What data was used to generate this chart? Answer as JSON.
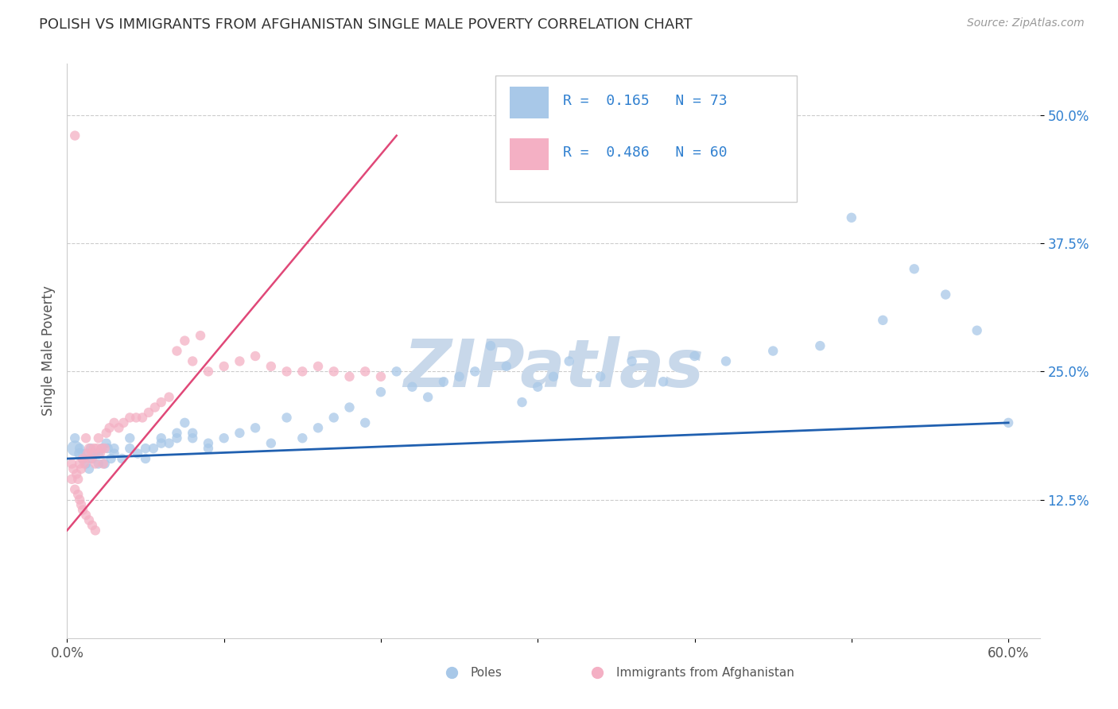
{
  "title": "POLISH VS IMMIGRANTS FROM AFGHANISTAN SINGLE MALE POVERTY CORRELATION CHART",
  "source": "Source: ZipAtlas.com",
  "ylabel": "Single Male Poverty",
  "watermark": "ZIPatlas",
  "xlim": [
    0.0,
    0.62
  ],
  "ylim": [
    -0.01,
    0.55
  ],
  "xtick_positions": [
    0.0,
    0.6
  ],
  "xticklabels": [
    "0.0%",
    "60.0%"
  ],
  "ytick_positions": [
    0.125,
    0.25,
    0.375,
    0.5
  ],
  "ytick_labels": [
    "12.5%",
    "25.0%",
    "37.5%",
    "50.0%"
  ],
  "legend_R1": "R =  0.165",
  "legend_N1": "N = 73",
  "legend_R2": "R =  0.486",
  "legend_N2": "N = 60",
  "blue_color": "#a8c8e8",
  "pink_color": "#f4b0c4",
  "blue_line_color": "#2060b0",
  "pink_line_color": "#e04878",
  "ytick_color": "#3080d0",
  "title_color": "#333333",
  "watermark_color": "#c8d8ea",
  "grid_color": "#cccccc",
  "blue_scatter_x": [
    0.005,
    0.008,
    0.01,
    0.012,
    0.014,
    0.016,
    0.018,
    0.02,
    0.022,
    0.024,
    0.026,
    0.028,
    0.03,
    0.035,
    0.04,
    0.045,
    0.05,
    0.055,
    0.06,
    0.065,
    0.07,
    0.075,
    0.08,
    0.09,
    0.1,
    0.11,
    0.12,
    0.13,
    0.14,
    0.15,
    0.16,
    0.17,
    0.18,
    0.19,
    0.2,
    0.21,
    0.22,
    0.23,
    0.24,
    0.25,
    0.26,
    0.27,
    0.28,
    0.29,
    0.3,
    0.31,
    0.32,
    0.34,
    0.36,
    0.38,
    0.4,
    0.42,
    0.45,
    0.48,
    0.5,
    0.52,
    0.54,
    0.56,
    0.58,
    0.6,
    0.005,
    0.008,
    0.012,
    0.015,
    0.02,
    0.025,
    0.03,
    0.04,
    0.05,
    0.06,
    0.07,
    0.08,
    0.09
  ],
  "blue_scatter_y": [
    0.175,
    0.17,
    0.165,
    0.16,
    0.155,
    0.165,
    0.17,
    0.16,
    0.175,
    0.16,
    0.175,
    0.165,
    0.17,
    0.165,
    0.175,
    0.17,
    0.165,
    0.175,
    0.185,
    0.18,
    0.19,
    0.2,
    0.185,
    0.175,
    0.185,
    0.19,
    0.195,
    0.18,
    0.205,
    0.185,
    0.195,
    0.205,
    0.215,
    0.2,
    0.23,
    0.25,
    0.235,
    0.225,
    0.24,
    0.245,
    0.25,
    0.275,
    0.255,
    0.22,
    0.235,
    0.245,
    0.26,
    0.245,
    0.26,
    0.24,
    0.265,
    0.26,
    0.27,
    0.275,
    0.4,
    0.3,
    0.35,
    0.325,
    0.29,
    0.2,
    0.185,
    0.175,
    0.17,
    0.175,
    0.17,
    0.18,
    0.175,
    0.185,
    0.175,
    0.18,
    0.185,
    0.19,
    0.18
  ],
  "blue_scatter_sizes": [
    200,
    100,
    90,
    80,
    80,
    80,
    80,
    80,
    80,
    80,
    80,
    80,
    80,
    80,
    80,
    80,
    80,
    80,
    80,
    80,
    80,
    80,
    80,
    80,
    80,
    80,
    80,
    80,
    80,
    80,
    80,
    80,
    80,
    80,
    80,
    80,
    80,
    80,
    80,
    80,
    80,
    80,
    80,
    80,
    80,
    80,
    80,
    80,
    80,
    80,
    80,
    80,
    80,
    80,
    80,
    80,
    80,
    80,
    80,
    80,
    80,
    80,
    80,
    80,
    80,
    80,
    80,
    80,
    80,
    80,
    80,
    80,
    80
  ],
  "pink_scatter_x": [
    0.003,
    0.004,
    0.005,
    0.006,
    0.007,
    0.008,
    0.009,
    0.01,
    0.011,
    0.012,
    0.013,
    0.014,
    0.015,
    0.016,
    0.017,
    0.018,
    0.019,
    0.02,
    0.021,
    0.022,
    0.023,
    0.024,
    0.025,
    0.027,
    0.03,
    0.033,
    0.036,
    0.04,
    0.044,
    0.048,
    0.052,
    0.056,
    0.06,
    0.065,
    0.07,
    0.075,
    0.08,
    0.085,
    0.09,
    0.1,
    0.11,
    0.12,
    0.13,
    0.14,
    0.15,
    0.16,
    0.17,
    0.18,
    0.19,
    0.2,
    0.003,
    0.005,
    0.007,
    0.008,
    0.009,
    0.01,
    0.012,
    0.014,
    0.016,
    0.018
  ],
  "pink_scatter_y": [
    0.16,
    0.155,
    0.48,
    0.15,
    0.145,
    0.16,
    0.155,
    0.165,
    0.16,
    0.185,
    0.17,
    0.175,
    0.165,
    0.17,
    0.175,
    0.16,
    0.175,
    0.185,
    0.17,
    0.175,
    0.16,
    0.175,
    0.19,
    0.195,
    0.2,
    0.195,
    0.2,
    0.205,
    0.205,
    0.205,
    0.21,
    0.215,
    0.22,
    0.225,
    0.27,
    0.28,
    0.26,
    0.285,
    0.25,
    0.255,
    0.26,
    0.265,
    0.255,
    0.25,
    0.25,
    0.255,
    0.25,
    0.245,
    0.25,
    0.245,
    0.145,
    0.135,
    0.13,
    0.125,
    0.12,
    0.115,
    0.11,
    0.105,
    0.1,
    0.095
  ],
  "pink_scatter_sizes": [
    80,
    80,
    80,
    80,
    80,
    80,
    80,
    80,
    80,
    80,
    80,
    80,
    80,
    80,
    80,
    80,
    80,
    80,
    80,
    80,
    80,
    80,
    80,
    80,
    80,
    80,
    80,
    80,
    80,
    80,
    80,
    80,
    80,
    80,
    80,
    80,
    80,
    80,
    80,
    80,
    80,
    80,
    80,
    80,
    80,
    80,
    80,
    80,
    80,
    80,
    80,
    80,
    80,
    80,
    80,
    80,
    80,
    80,
    80,
    80
  ],
  "blue_trend_x": [
    0.0,
    0.6
  ],
  "blue_trend_y": [
    0.165,
    0.2
  ],
  "pink_trend_x": [
    0.0,
    0.21
  ],
  "pink_trend_y": [
    0.095,
    0.48
  ]
}
